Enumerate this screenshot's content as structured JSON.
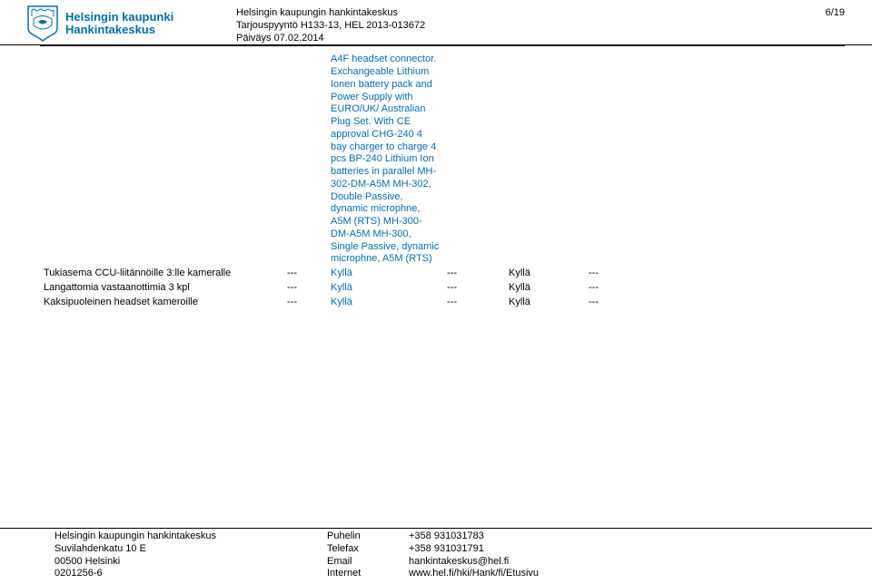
{
  "header": {
    "logo_line1": "Helsingin kaupunki",
    "logo_line2": "Hankintakeskus",
    "center_line1": "Helsingin kaupungin hankintakeskus",
    "center_line2": "Tarjouspyyntö H133-13, HEL 2013-013672",
    "center_line3": "Päiväys 07.02.2014",
    "page": "6/19"
  },
  "rows": [
    {
      "label": "",
      "c1": "",
      "spec": "A4F headset connector. Exchangeable Lithium Ionen battery pack and Power Supply with EURO/UK/ Australian Plug Set. With CE approval CHG-240 4 bay charger to charge 4 pcs BP-240 Lithium Ion batteries in parallel  MH-302-DM-A5M MH-302, Double Passive, dynamic microphne, A5M (RTS) MH-300-DM-A5M  MH-300, Single Passive, dynamic microphne, A5M (RTS)",
      "c2": "",
      "v2": "",
      "c3": ""
    },
    {
      "label": "Tukiasema CCU-liitännöille 3:lle kameralle",
      "c1": "---",
      "spec": "Kyllä",
      "c2": "---",
      "v2": "Kyllä",
      "c3": "---"
    },
    {
      "label": "Langattomia vastaanottimia 3 kpl",
      "c1": "---",
      "spec": "Kyllä",
      "c2": "---",
      "v2": "Kyllä",
      "c3": "---"
    },
    {
      "label": "Kaksipuoleinen headset kameroille",
      "c1": "---",
      "spec": "Kyllä",
      "c2": "---",
      "v2": "Kyllä",
      "c3": "---"
    }
  ],
  "footer": {
    "addr1": "Helsingin kaupungin hankintakeskus",
    "addr2": "Suvilahdenkatu 10 E",
    "addr3": "00500 Helsinki",
    "addr4": "0201256-6",
    "lab_phone": "Puhelin",
    "lab_fax": "Telefax",
    "lab_email": "Email",
    "lab_web": "Internet",
    "val_phone": "+358 931031783",
    "val_fax": "+358 931031791",
    "val_email": "hankintakeskus@hel.fi",
    "val_web": "www.hel.fi/hki/Hank/fi/Etusivu"
  }
}
